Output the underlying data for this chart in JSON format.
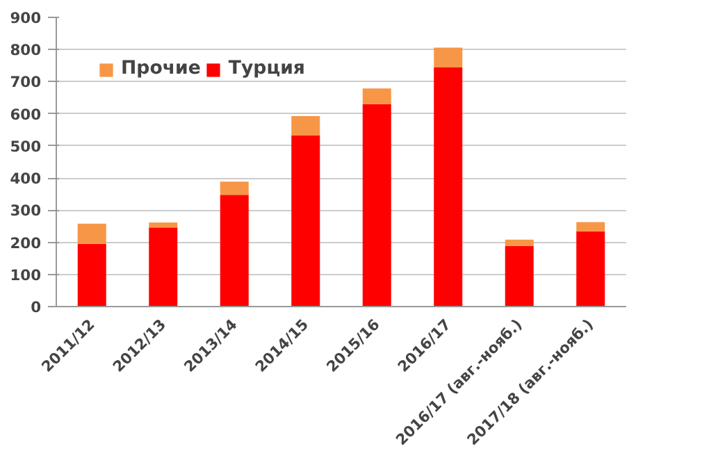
{
  "chart_data": {
    "type": "bar",
    "stacked": true,
    "categories": [
      "2011/12",
      "2012/13",
      "2013/14",
      "2014/15",
      "2015/16",
      "2016/17",
      "2016/17 (авг.-нояб.)",
      "2017/18 (авг.-нояб.)"
    ],
    "series": [
      {
        "name": "Турция",
        "color": "#ff0000",
        "values": [
          195,
          246,
          348,
          532,
          630,
          744,
          189,
          234
        ]
      },
      {
        "name": "Прочие",
        "color": "#f79646",
        "values": [
          63,
          16,
          41,
          61,
          49,
          62,
          19,
          29
        ]
      }
    ],
    "ylim": [
      0,
      900
    ],
    "yticks": [
      0,
      100,
      200,
      300,
      400,
      500,
      600,
      700,
      800,
      900
    ],
    "grid": "y",
    "legend": "top left"
  }
}
